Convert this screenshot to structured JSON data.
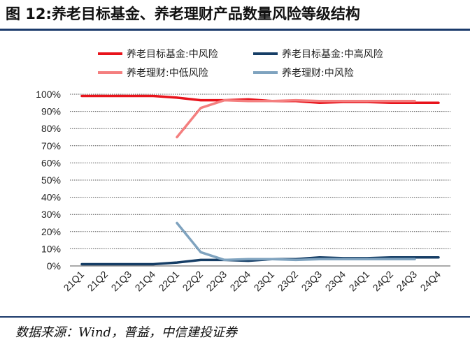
{
  "title": "图 12:养老目标基金、养老理财产品数量风险等级结构",
  "source": "数据来源：Wind，普益，中信建投证券",
  "chart_data": {
    "type": "line",
    "title": "",
    "xlabel": "",
    "ylabel": "",
    "categories": [
      "21Q1",
      "21Q2",
      "21Q3",
      "21Q4",
      "22Q1",
      "22Q2",
      "22Q3",
      "22Q4",
      "23Q1",
      "23Q2",
      "23Q3",
      "23Q4",
      "24Q1",
      "24Q2",
      "24Q3",
      "24Q4"
    ],
    "yticks": [
      "0%",
      "10%",
      "20%",
      "30%",
      "40%",
      "50%",
      "60%",
      "70%",
      "80%",
      "90%",
      "100%"
    ],
    "ylim": [
      0,
      1.0
    ],
    "grid": "horizontal dotted",
    "legend_position": "top",
    "series": [
      {
        "name": "养老目标基金:中风险",
        "color": "#e8131b",
        "values": [
          0.99,
          0.99,
          0.99,
          0.99,
          0.98,
          0.965,
          0.965,
          0.97,
          0.96,
          0.96,
          0.95,
          0.955,
          0.955,
          0.95,
          0.95,
          0.95
        ]
      },
      {
        "name": "养老目标基金:中高风险",
        "color": "#163e66",
        "values": [
          0.01,
          0.01,
          0.01,
          0.01,
          0.02,
          0.035,
          0.035,
          0.03,
          0.04,
          0.04,
          0.05,
          0.045,
          0.045,
          0.05,
          0.05,
          0.05
        ]
      },
      {
        "name": "养老理财:中低风险",
        "color": "#f47f7f",
        "values": [
          null,
          null,
          null,
          null,
          0.75,
          0.92,
          0.965,
          0.96,
          0.96,
          0.965,
          0.96,
          0.96,
          0.96,
          0.96,
          0.96,
          null
        ]
      },
      {
        "name": "养老理财:中风险",
        "color": "#7fa3bf",
        "values": [
          null,
          null,
          null,
          null,
          0.25,
          0.08,
          0.035,
          0.04,
          0.04,
          0.035,
          0.04,
          0.04,
          0.04,
          0.04,
          0.04,
          null
        ]
      }
    ]
  }
}
